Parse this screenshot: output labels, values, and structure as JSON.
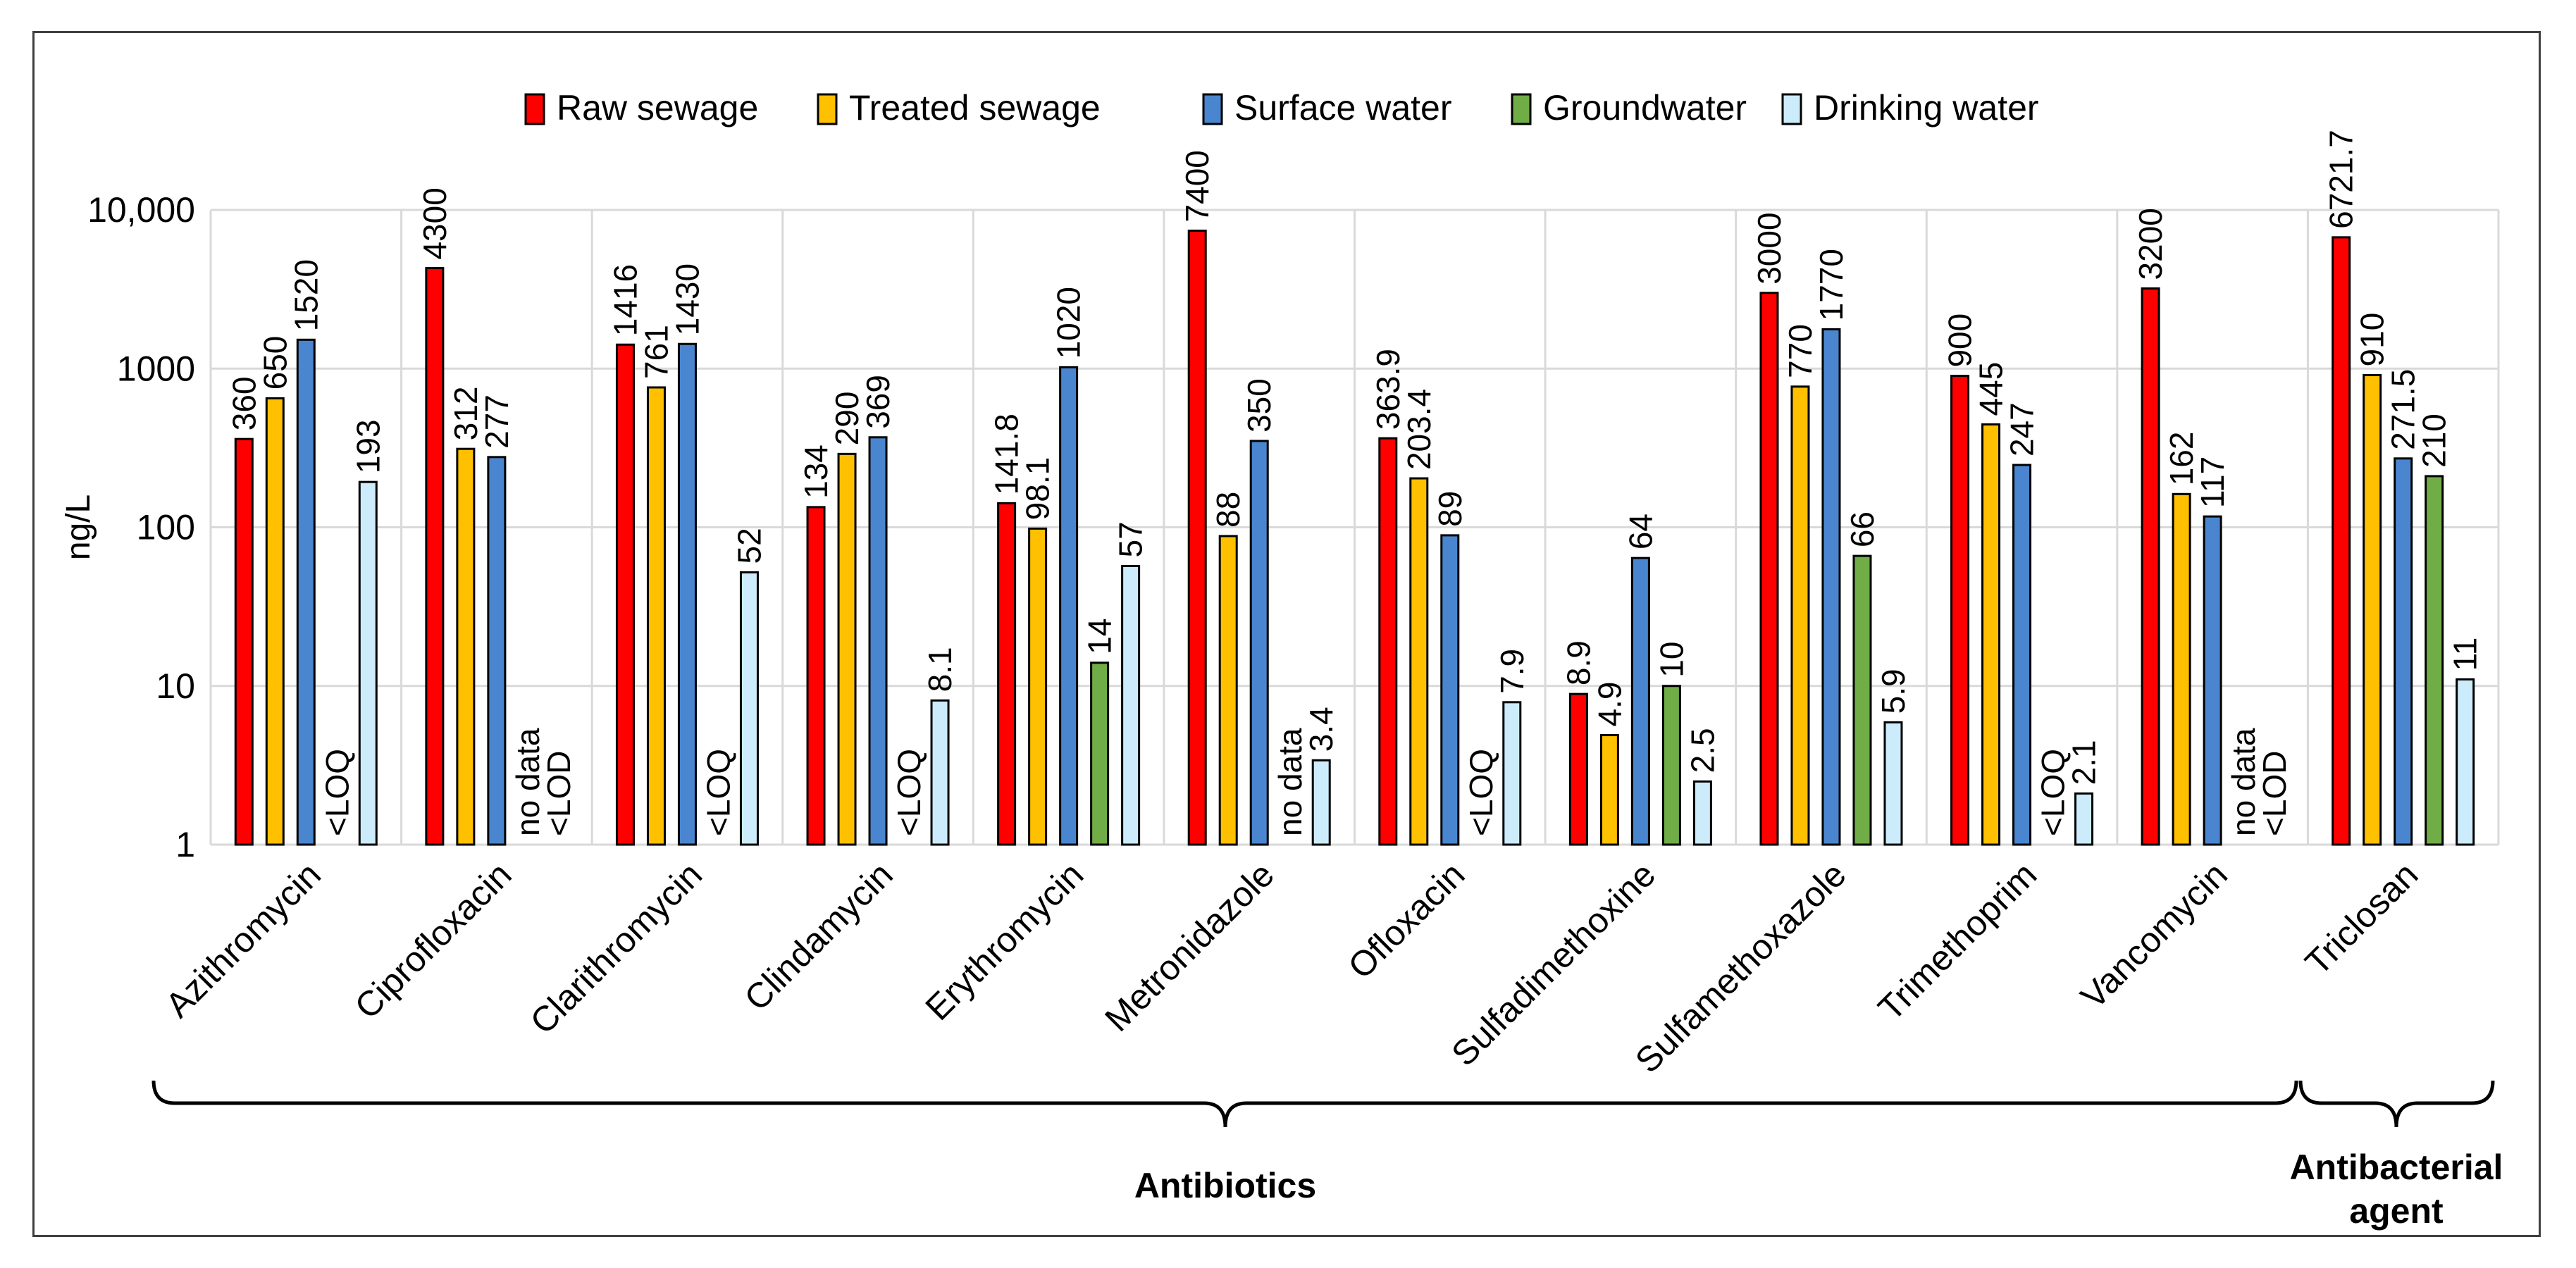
{
  "chart_data": {
    "type": "bar",
    "scale": "log",
    "ylabel": "ng/L",
    "ylim": [
      1,
      10000
    ],
    "y_ticks": [
      {
        "value": 1,
        "label": "1"
      },
      {
        "value": 10,
        "label": "10"
      },
      {
        "value": 100,
        "label": "100"
      },
      {
        "value": 1000,
        "label": "1000"
      },
      {
        "value": 10000,
        "label": "10,000"
      }
    ],
    "grid": true,
    "legend_position": "top",
    "categories": [
      "Azithromycin",
      "Ciprofloxacin",
      "Clarithromycin",
      "Clindamycin",
      "Erythromycin",
      "Metronidazole",
      "Ofloxacin",
      "Sulfadimethoxine",
      "Sulfamethoxazole",
      "Trimethoprim",
      "Vancomycin",
      "Triclosan"
    ],
    "series": [
      {
        "name": "Raw sewage",
        "color": "#ff0000",
        "values": [
          360,
          4300,
          1416,
          134,
          141.8,
          7400,
          363.9,
          8.9,
          3000,
          900,
          3200,
          6721.7
        ],
        "labels": [
          "360",
          "4300",
          "1416",
          "134",
          "141.8",
          "7400",
          "363.9",
          "8.9",
          "3000",
          "900",
          "3200",
          "6721.7"
        ]
      },
      {
        "name": "Treated sewage",
        "color": "#ffc000",
        "values": [
          650,
          312,
          761,
          290,
          98.1,
          88,
          203.4,
          4.9,
          770,
          445,
          162,
          910
        ],
        "labels": [
          "650",
          "312",
          "761",
          "290",
          "98.1",
          "88",
          "203.4",
          "4.9",
          "770",
          "445",
          "162",
          "910"
        ]
      },
      {
        "name": "Surface water",
        "color": "#4a86d0",
        "values": [
          1520,
          277,
          1430,
          369,
          1020,
          350,
          89,
          64,
          1770,
          247,
          117,
          271.5
        ],
        "labels": [
          "1520",
          "277",
          "1430",
          "369",
          "1020",
          "350",
          "89",
          "64",
          "1770",
          "247",
          "117",
          "271.5"
        ]
      },
      {
        "name": "Groundwater",
        "color": "#70ad47",
        "values": [
          null,
          null,
          null,
          null,
          14,
          null,
          null,
          10,
          66,
          null,
          null,
          210
        ],
        "labels": [
          "<LOQ",
          "no data",
          "<LOQ",
          "<LOQ",
          "14",
          "no data",
          "<LOQ",
          "10",
          "66",
          "<LOQ",
          "no data",
          "210"
        ]
      },
      {
        "name": "Drinking water",
        "color": "#ccecfc",
        "values": [
          193,
          null,
          52,
          8.1,
          57,
          3.4,
          7.9,
          2.5,
          5.9,
          2.1,
          null,
          11
        ],
        "labels": [
          "193",
          "<LOD",
          "52",
          "8.1",
          "57",
          "3.4",
          "7.9",
          "2.5",
          "5.9",
          "2.1",
          "<LOD",
          "11"
        ]
      }
    ],
    "groups": [
      {
        "label": "Antibiotics",
        "from": 0,
        "to": 10
      },
      {
        "label": "Antibacterial agent",
        "lines": [
          "Antibacterial",
          "agent"
        ],
        "from": 11,
        "to": 11
      }
    ]
  }
}
